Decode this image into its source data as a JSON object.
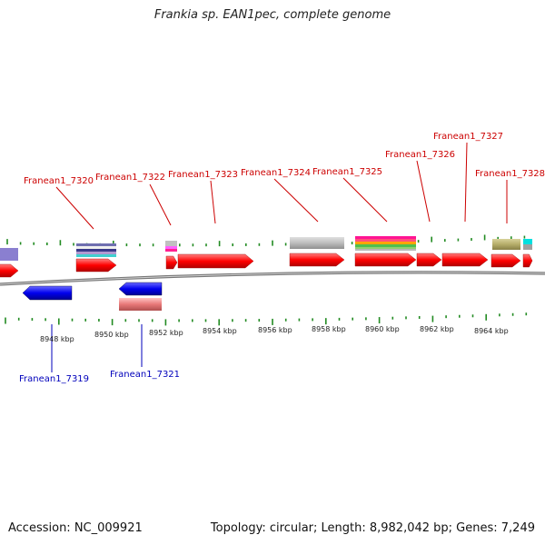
{
  "title": "Frankia sp. EAN1pec, complete genome",
  "footer": {
    "accession": "Accession: NC_009921",
    "summary": "Topology: circular; Length: 8,982,042 bp; Genes: 7,249"
  },
  "colors": {
    "forward_gene": "#ff0000",
    "reverse_gene": "#0000ff",
    "forward_label": "#cc0000",
    "reverse_label": "#0000bb",
    "tick": "#228b22",
    "backbone": "#888888"
  },
  "ticks": [
    {
      "label": "8948 kbp"
    },
    {
      "label": "8950 kbp"
    },
    {
      "label": "8952 kbp"
    },
    {
      "label": "8954 kbp"
    },
    {
      "label": "8956 kbp"
    },
    {
      "label": "8958 kbp"
    },
    {
      "label": "8960 kbp"
    },
    {
      "label": "8962 kbp"
    },
    {
      "label": "8964 kbp"
    }
  ],
  "gene_labels_forward": [
    {
      "name": "Franean1_7320"
    },
    {
      "name": "Franean1_7322"
    },
    {
      "name": "Franean1_7323"
    },
    {
      "name": "Franean1_7324"
    },
    {
      "name": "Franean1_7325"
    },
    {
      "name": "Franean1_7326"
    },
    {
      "name": "Franean1_7327"
    },
    {
      "name": "Franean1_7328"
    }
  ],
  "gene_labels_reverse": [
    {
      "name": "Franean1_7319"
    },
    {
      "name": "Franean1_7321"
    }
  ]
}
